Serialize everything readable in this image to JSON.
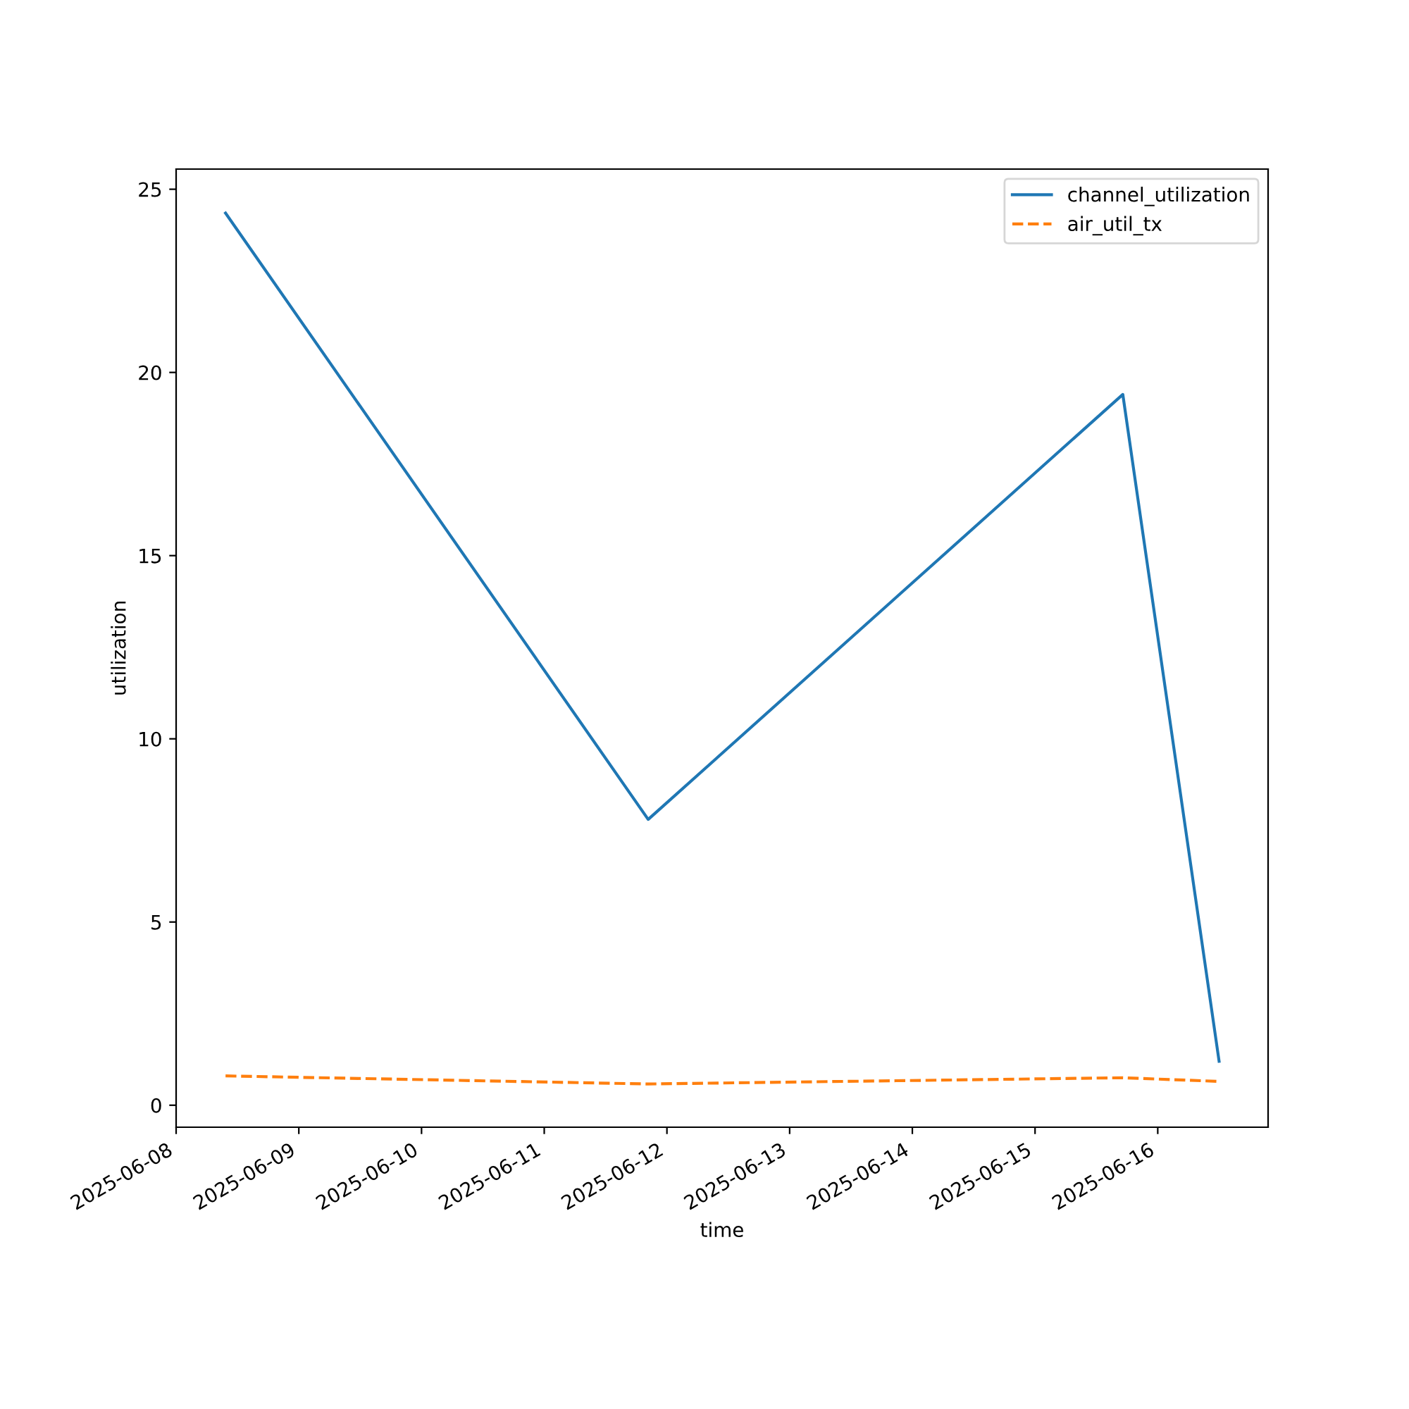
{
  "chart_data": {
    "type": "line",
    "xlabel": "time",
    "ylabel": "utilization",
    "x": [
      "2025-06-08T09:40",
      "2025-06-11T20:20",
      "2025-06-15T17:10",
      "2025-06-16T12:00"
    ],
    "series": [
      {
        "name": "channel_utilization",
        "color": "#1f77b4",
        "line_style": "solid",
        "values": [
          24.35,
          7.8,
          19.4,
          1.2
        ]
      },
      {
        "name": "air_util_tx",
        "color": "#ff7f0e",
        "line_style": "dashed",
        "values": [
          0.8,
          0.58,
          0.75,
          0.65
        ]
      }
    ],
    "xlim": [
      "2025-06-08T00:00",
      "2025-06-16T21:35"
    ],
    "xticks": [
      "2025-06-08",
      "2025-06-09",
      "2025-06-10",
      "2025-06-11",
      "2025-06-12",
      "2025-06-13",
      "2025-06-14",
      "2025-06-15",
      "2025-06-16"
    ],
    "ylim": [
      -0.6,
      25.55
    ],
    "yticks": [
      0,
      5,
      10,
      15,
      20,
      25
    ],
    "grid": false,
    "legend": "top right",
    "marker": "none"
  }
}
